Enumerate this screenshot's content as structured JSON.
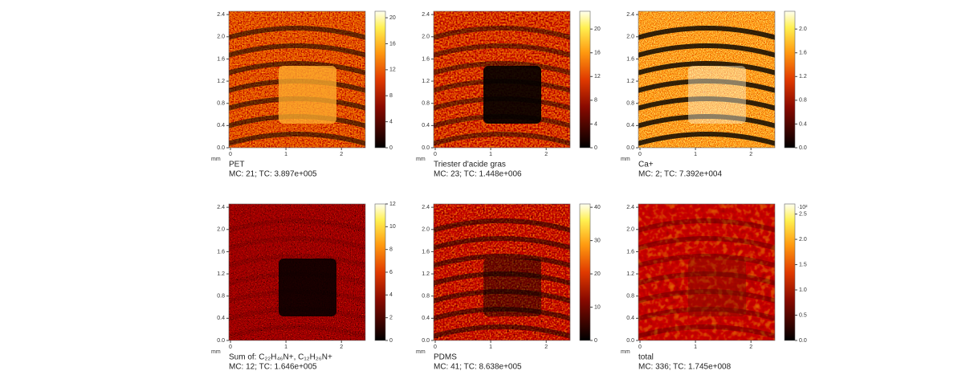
{
  "panels": [
    {
      "label": "PET",
      "info": "MC:    21; TC: 3.897e+005",
      "unit": "mm",
      "xlim": [
        0,
        2.46
      ],
      "xticks": [
        0,
        1,
        2
      ],
      "ylim": [
        0,
        2.46
      ],
      "yticks": [
        {
          "value": 0,
          "label": "0.0"
        },
        {
          "value": 0.4,
          "label": "0.4"
        },
        {
          "value": 0.8,
          "label": "0.8"
        },
        {
          "value": 1.2,
          "label": "1.2"
        },
        {
          "value": 1.6,
          "label": "1.6"
        },
        {
          "value": 2,
          "label": "2.0"
        },
        {
          "value": 2.4,
          "label": "2.4"
        }
      ],
      "clim": [
        0,
        21
      ],
      "cticks": [
        0,
        4,
        8,
        12,
        16,
        20
      ]
    },
    {
      "label": "Triester d'acide gras",
      "info": "MC:    23; TC: 1.448e+006",
      "unit": "mm",
      "xlim": [
        0,
        2.46
      ],
      "xticks": [
        0,
        1,
        2
      ],
      "ylim": [
        0,
        2.46
      ],
      "yticks": [
        {
          "value": 0,
          "label": "0.0"
        },
        {
          "value": 0.4,
          "label": "0.4"
        },
        {
          "value": 0.8,
          "label": "0.8"
        },
        {
          "value": 1.2,
          "label": "1.2"
        },
        {
          "value": 1.6,
          "label": "1.6"
        },
        {
          "value": 2,
          "label": "2.0"
        },
        {
          "value": 2.4,
          "label": "2.4"
        }
      ],
      "clim": [
        0,
        23
      ],
      "cticks": [
        0,
        4,
        8,
        12,
        16,
        20
      ]
    },
    {
      "label": "Ca+",
      "info": "MC:     2; TC: 7.392e+004",
      "unit": "mm",
      "xlim": [
        0,
        2.46
      ],
      "xticks": [
        0,
        1,
        2
      ],
      "ylim": [
        0,
        2.46
      ],
      "yticks": [
        {
          "value": 0,
          "label": "0.0"
        },
        {
          "value": 0.4,
          "label": "0.4"
        },
        {
          "value": 0.8,
          "label": "0.8"
        },
        {
          "value": 1.2,
          "label": "1.2"
        },
        {
          "value": 1.6,
          "label": "1.6"
        },
        {
          "value": 2,
          "label": "2.0"
        },
        {
          "value": 2.4,
          "label": "2.4"
        }
      ],
      "clim": [
        0,
        2.3
      ],
      "cticks": [
        {
          "value": 0,
          "label": "0.0"
        },
        {
          "value": 0.4,
          "label": "0.4"
        },
        {
          "value": 0.8,
          "label": "0.8"
        },
        {
          "value": 1.2,
          "label": "1.2"
        },
        {
          "value": 1.6,
          "label": "1.6"
        },
        {
          "value": 2,
          "label": "2.0"
        }
      ]
    },
    {
      "label": "Sum of: C₂₂H₄₆N+, C₁₂H₂₆N+",
      "info": "MC:    12; TC: 1.646e+005",
      "unit": "mm",
      "xlim": [
        0,
        2.46
      ],
      "xticks": [
        0,
        1,
        2
      ],
      "ylim": [
        0,
        2.46
      ],
      "yticks": [
        {
          "value": 0,
          "label": "0.0"
        },
        {
          "value": 0.4,
          "label": "0.4"
        },
        {
          "value": 0.8,
          "label": "0.8"
        },
        {
          "value": 1.2,
          "label": "1.2"
        },
        {
          "value": 1.6,
          "label": "1.6"
        },
        {
          "value": 2,
          "label": "2.0"
        },
        {
          "value": 2.4,
          "label": "2.4"
        }
      ],
      "clim": [
        0,
        12
      ],
      "cticks": [
        0,
        2,
        4,
        6,
        8,
        10,
        12
      ]
    },
    {
      "label": "PDMS",
      "info": "MC:    41; TC: 8.638e+005",
      "unit": "mm",
      "xlim": [
        0,
        2.46
      ],
      "xticks": [
        0,
        1,
        2
      ],
      "ylim": [
        0,
        2.46
      ],
      "yticks": [
        {
          "value": 0,
          "label": "0.0"
        },
        {
          "value": 0.4,
          "label": "0.4"
        },
        {
          "value": 0.8,
          "label": "0.8"
        },
        {
          "value": 1.2,
          "label": "1.2"
        },
        {
          "value": 1.6,
          "label": "1.6"
        },
        {
          "value": 2,
          "label": "2.0"
        },
        {
          "value": 2.4,
          "label": "2.4"
        }
      ],
      "clim": [
        0,
        41
      ],
      "cticks": [
        0,
        10,
        20,
        30,
        40
      ]
    },
    {
      "label": "total",
      "info": "MC:   336; TC: 1.745e+008",
      "unit": "mm",
      "cunit": "·10²",
      "xlim": [
        0,
        2.46
      ],
      "xticks": [
        0,
        1,
        2
      ],
      "ylim": [
        0,
        2.46
      ],
      "yticks": [
        {
          "value": 0,
          "label": "0.0"
        },
        {
          "value": 0.4,
          "label": "0.4"
        },
        {
          "value": 0.8,
          "label": "0.8"
        },
        {
          "value": 1.2,
          "label": "1.2"
        },
        {
          "value": 1.6,
          "label": "1.6"
        },
        {
          "value": 2,
          "label": "2.0"
        },
        {
          "value": 2.4,
          "label": "2.4"
        }
      ],
      "clim": [
        0,
        2.7
      ],
      "cticks": [
        {
          "value": 0,
          "label": "0.0"
        },
        {
          "value": 0.5,
          "label": "0.5"
        },
        {
          "value": 1,
          "label": "1.0"
        },
        {
          "value": 1.5,
          "label": "1.5"
        },
        {
          "value": 2,
          "label": "2.0"
        },
        {
          "value": 2.5,
          "label": "2.5"
        }
      ]
    }
  ]
}
